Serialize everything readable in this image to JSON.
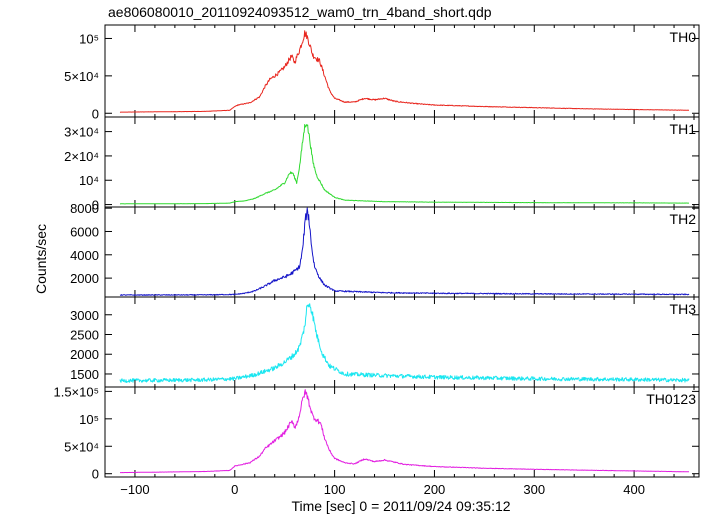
{
  "title": "ae806080010_20110924093512_wam0_trn_4band_short.qdp",
  "xlabel": "Time [sec] 0 = 2011/09/24 09:35:12",
  "ylabel": "Counts/sec",
  "chart_data": [
    {
      "type": "line",
      "panel": "TH0",
      "color": "#e8261e",
      "xlim": [
        -130,
        465
      ],
      "ylim": [
        -5000,
        118000
      ],
      "x_ticks": [
        -100,
        0,
        100,
        200,
        300,
        400
      ],
      "y_ticks": [
        {
          "value": 0,
          "label": "0"
        },
        {
          "value": 50000,
          "label": "5×10⁴"
        },
        {
          "value": 100000,
          "label": "10⁵"
        }
      ],
      "series": [
        {
          "x": [
            -115,
            -30,
            -5,
            0,
            3,
            15,
            25,
            30,
            35,
            40,
            45,
            50,
            55,
            57,
            60,
            62,
            65,
            68,
            70,
            72,
            75,
            78,
            82,
            85,
            90,
            95,
            100,
            110,
            120,
            130,
            140,
            150,
            160,
            180,
            200,
            250,
            300,
            350,
            400,
            455
          ],
          "y": [
            1500,
            2500,
            4000,
            9000,
            11000,
            14000,
            22000,
            35000,
            45000,
            50000,
            55000,
            62000,
            73000,
            76000,
            68000,
            75000,
            85000,
            98000,
            107000,
            104000,
            92000,
            78000,
            73000,
            70000,
            50000,
            30000,
            20000,
            15000,
            15000,
            20000,
            18000,
            20000,
            16000,
            13000,
            11000,
            9000,
            7500,
            6000,
            5000,
            4000
          ]
        }
      ]
    },
    {
      "type": "line",
      "panel": "TH1",
      "color": "#2fd92f",
      "xlim": [
        -130,
        465
      ],
      "ylim": [
        -1000,
        36000
      ],
      "x_ticks": [
        -100,
        0,
        100,
        200,
        300,
        400
      ],
      "y_ticks": [
        {
          "value": 0,
          "label": "0"
        },
        {
          "value": 10000,
          "label": "10⁴"
        },
        {
          "value": 20000,
          "label": "2×10⁴"
        },
        {
          "value": 30000,
          "label": "3×10⁴"
        }
      ],
      "series": [
        {
          "x": [
            -115,
            -30,
            -5,
            0,
            10,
            20,
            30,
            40,
            50,
            55,
            58,
            62,
            65,
            68,
            70,
            72,
            75,
            78,
            82,
            90,
            100,
            110,
            130,
            150,
            200,
            300,
            400,
            455
          ],
          "y": [
            300,
            400,
            600,
            1200,
            1500,
            2500,
            4500,
            6000,
            9000,
            13000,
            13000,
            9000,
            16000,
            26000,
            32000,
            34000,
            27000,
            18000,
            12000,
            6000,
            3000,
            1800,
            1500,
            1200,
            1000,
            800,
            700,
            600
          ]
        }
      ]
    },
    {
      "type": "line",
      "panel": "TH2",
      "color": "#1515c8",
      "xlim": [
        -130,
        465
      ],
      "ylim": [
        380,
        8100
      ],
      "x_ticks": [
        -100,
        0,
        100,
        200,
        300,
        400
      ],
      "y_ticks": [
        {
          "value": 2000,
          "label": "2000"
        },
        {
          "value": 4000,
          "label": "4000"
        },
        {
          "value": 6000,
          "label": "6000"
        },
        {
          "value": 8000,
          "label": "8000"
        }
      ],
      "series": [
        {
          "x": [
            -115,
            -30,
            0,
            10,
            20,
            30,
            40,
            50,
            55,
            60,
            65,
            68,
            70,
            72,
            74,
            76,
            78,
            80,
            85,
            90,
            100,
            150,
            200,
            300,
            400,
            455
          ],
          "y": [
            550,
            560,
            600,
            700,
            900,
            1300,
            1800,
            2100,
            2300,
            2600,
            3000,
            4500,
            6500,
            7700,
            7300,
            5500,
            4000,
            3000,
            2000,
            1400,
            900,
            750,
            700,
            650,
            620,
            600
          ]
        }
      ]
    },
    {
      "type": "line",
      "panel": "TH3",
      "color": "#1ae6f0",
      "xlim": [
        -130,
        465
      ],
      "ylim": [
        1170,
        3450
      ],
      "x_ticks": [
        -100,
        0,
        100,
        200,
        300,
        400
      ],
      "y_ticks": [
        {
          "value": 1500,
          "label": "1500"
        },
        {
          "value": 2000,
          "label": "2000"
        },
        {
          "value": 2500,
          "label": "2500"
        },
        {
          "value": 3000,
          "label": "3000"
        }
      ],
      "series": [
        {
          "x": [
            -115,
            -30,
            0,
            20,
            40,
            50,
            60,
            65,
            70,
            72,
            75,
            78,
            82,
            88,
            95,
            110,
            150,
            200,
            300,
            400,
            455
          ],
          "y": [
            1330,
            1350,
            1380,
            1480,
            1650,
            1800,
            2000,
            2200,
            2700,
            3150,
            3300,
            3000,
            2500,
            2000,
            1700,
            1500,
            1460,
            1420,
            1380,
            1360,
            1340
          ]
        }
      ]
    },
    {
      "type": "line",
      "panel": "TH0123",
      "color": "#e21fe0",
      "xlim": [
        -130,
        465
      ],
      "ylim": [
        -6000,
        158000
      ],
      "x_ticks": [
        -100,
        0,
        100,
        200,
        300,
        400
      ],
      "y_ticks": [
        {
          "value": 0,
          "label": "0"
        },
        {
          "value": 50000,
          "label": "5×10⁴"
        },
        {
          "value": 100000,
          "label": "10⁵"
        },
        {
          "value": 150000,
          "label": "1.5×10⁵"
        }
      ],
      "series": [
        {
          "x": [
            -115,
            -30,
            -5,
            0,
            5,
            15,
            25,
            30,
            40,
            45,
            50,
            55,
            58,
            60,
            62,
            65,
            68,
            70,
            72,
            75,
            78,
            82,
            86,
            90,
            95,
            100,
            110,
            120,
            130,
            140,
            150,
            170,
            200,
            250,
            300,
            350,
            400,
            455
          ],
          "y": [
            2000,
            4000,
            6000,
            14000,
            16000,
            20000,
            32000,
            45000,
            60000,
            67000,
            75000,
            90000,
            95000,
            85000,
            90000,
            110000,
            135000,
            148000,
            145000,
            125000,
            105000,
            98000,
            92000,
            65000,
            42000,
            28000,
            20000,
            18000,
            27000,
            22000,
            25000,
            17000,
            13000,
            10000,
            8000,
            6500,
            5000,
            3500
          ]
        }
      ]
    }
  ]
}
